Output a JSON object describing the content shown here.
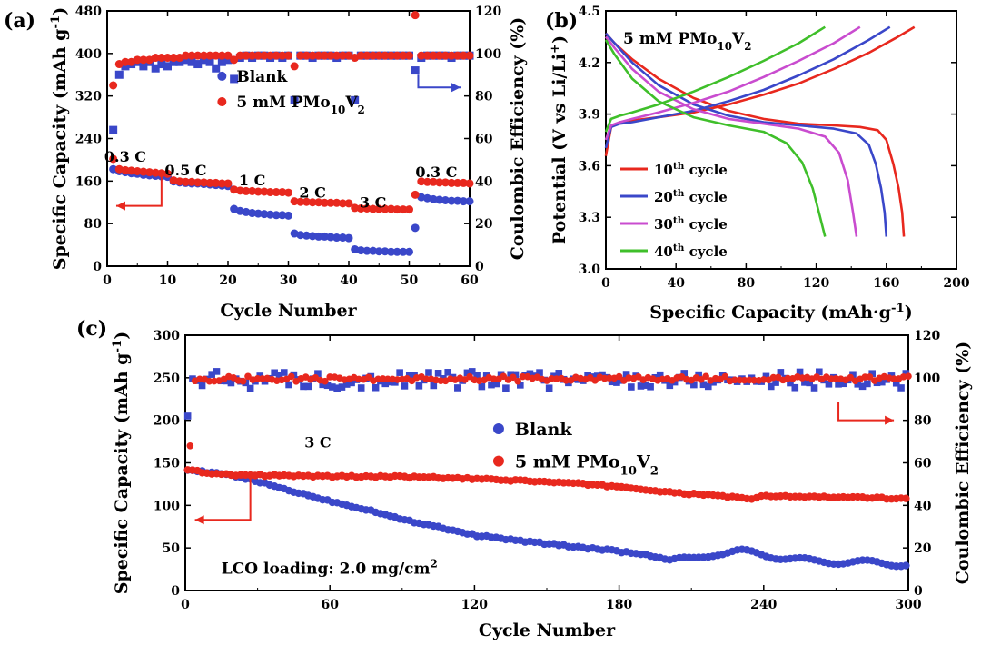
{
  "colors": {
    "blank": "#3a47c9",
    "pmo": "#e8281e",
    "c10": "#e8281e",
    "c20": "#3a47c9",
    "c30": "#c94ccf",
    "c40": "#3fbf2a"
  },
  "chart_data": [
    {
      "id": "a",
      "panel_label": "(a)",
      "type": "scatter",
      "xlabel": "Cycle Number",
      "ylabel": "Specific Capacity (mAh g-1)",
      "ylabel_main": "Specific Capacity (mAh g",
      "ylabel_sup": "-1",
      "ylabel_end": ")",
      "y2label": "Coulombic Efficiency (%)",
      "xlim": [
        0,
        60
      ],
      "ylim": [
        0,
        500
      ],
      "y2lim": [
        0,
        120
      ],
      "xticks": [
        "0",
        "10",
        "20",
        "30",
        "40",
        "50",
        "60"
      ],
      "yticks": [
        "0",
        "80",
        "160",
        "240",
        "320",
        "400",
        "480"
      ],
      "y2ticks": [
        "0",
        "20",
        "40",
        "60",
        "80",
        "100",
        "120"
      ],
      "legend": [
        {
          "series": "Blank",
          "label": "Blank"
        },
        {
          "series": "5 mM PMo10V2",
          "label_main": "5 mM PMo",
          "sub1": "10",
          "mid": "V",
          "sub2": "2"
        }
      ],
      "rate_labels": [
        {
          "text": "0.3 C",
          "x": 3,
          "y": 205
        },
        {
          "text": "0.5 C",
          "x": 13,
          "y": 178
        },
        {
          "text": "1 C",
          "x": 24,
          "y": 158
        },
        {
          "text": "2 C",
          "x": 34,
          "y": 134
        },
        {
          "text": "3 C",
          "x": 44,
          "y": 115
        },
        {
          "text": "0.3 C",
          "x": 54.5,
          "y": 174
        }
      ],
      "series": [
        {
          "name": "Blank",
          "axis": "left",
          "marker": "circle",
          "x": [
            1,
            2,
            3,
            4,
            5,
            6,
            7,
            8,
            9,
            10,
            11,
            12,
            13,
            14,
            15,
            16,
            17,
            18,
            19,
            20,
            21,
            22,
            23,
            24,
            25,
            26,
            27,
            28,
            29,
            30,
            31,
            32,
            33,
            34,
            35,
            36,
            37,
            38,
            39,
            40,
            41,
            42,
            43,
            44,
            45,
            46,
            47,
            48,
            49,
            50,
            51,
            52,
            53,
            54,
            55,
            56,
            57,
            58,
            59,
            60
          ],
          "y": [
            190,
            186,
            184,
            182,
            181,
            179,
            178,
            177,
            176,
            175,
            166,
            164,
            163,
            162,
            162,
            161,
            160,
            159,
            158,
            157,
            112,
            108,
            106,
            104,
            103,
            102,
            101,
            100,
            100,
            99,
            64,
            61,
            60,
            59,
            58,
            58,
            57,
            56,
            56,
            55,
            33,
            31,
            30,
            30,
            29,
            29,
            28,
            28,
            28,
            28,
            75,
            135,
            133,
            131,
            130,
            129,
            128,
            128,
            127,
            127
          ]
        },
        {
          "name": "5 mM PMo10V2",
          "axis": "left",
          "marker": "circle",
          "x": [
            1,
            2,
            3,
            4,
            5,
            6,
            7,
            8,
            9,
            10,
            11,
            12,
            13,
            14,
            15,
            16,
            17,
            18,
            19,
            20,
            21,
            22,
            23,
            24,
            25,
            26,
            27,
            28,
            29,
            30,
            31,
            32,
            33,
            34,
            35,
            36,
            37,
            38,
            39,
            40,
            41,
            42,
            43,
            44,
            45,
            46,
            47,
            48,
            49,
            50,
            51,
            52,
            53,
            54,
            55,
            56,
            57,
            58,
            59,
            60
          ],
          "y": [
            210,
            190,
            188,
            187,
            186,
            185,
            184,
            183,
            182,
            181,
            168,
            166,
            165,
            165,
            164,
            164,
            163,
            163,
            162,
            162,
            150,
            148,
            147,
            147,
            146,
            146,
            145,
            145,
            145,
            144,
            127,
            126,
            126,
            125,
            125,
            124,
            124,
            124,
            123,
            123,
            114,
            113,
            113,
            112,
            112,
            112,
            112,
            111,
            111,
            111,
            140,
            166,
            165,
            165,
            164,
            164,
            163,
            163,
            163,
            162
          ]
        },
        {
          "name": "Blank CE",
          "axis": "right",
          "marker": "square",
          "x": [
            1,
            2,
            3,
            4,
            5,
            6,
            7,
            8,
            9,
            10,
            11,
            12,
            13,
            14,
            15,
            16,
            17,
            18,
            19,
            20,
            21,
            22,
            23,
            24,
            25,
            26,
            27,
            28,
            29,
            30,
            31,
            32,
            33,
            34,
            35,
            36,
            37,
            38,
            39,
            40,
            41,
            42,
            43,
            44,
            45,
            46,
            47,
            48,
            49,
            50,
            51,
            52,
            53,
            54,
            55,
            56,
            57,
            58,
            59,
            60
          ],
          "y": [
            64,
            90,
            94,
            95,
            96,
            94,
            96,
            93,
            95,
            94,
            96,
            96,
            97,
            96,
            95,
            97,
            96,
            93,
            96,
            97,
            88,
            98,
            99,
            98,
            99,
            99,
            98,
            99,
            98,
            99,
            78,
            99,
            99,
            98,
            99,
            99,
            99,
            98,
            99,
            99,
            78,
            99,
            99,
            99,
            99,
            99,
            99,
            99,
            99,
            99,
            92,
            98,
            99,
            99,
            99,
            99,
            98,
            99,
            99,
            99
          ]
        },
        {
          "name": "5 mM PMo10V2 CE",
          "axis": "right",
          "marker": "circle",
          "x": [
            1,
            2,
            3,
            4,
            5,
            6,
            7,
            8,
            9,
            10,
            11,
            12,
            13,
            14,
            15,
            16,
            17,
            18,
            19,
            20,
            21,
            22,
            23,
            24,
            25,
            26,
            27,
            28,
            29,
            30,
            31,
            32,
            33,
            34,
            35,
            36,
            37,
            38,
            39,
            40,
            41,
            42,
            43,
            44,
            45,
            46,
            47,
            48,
            49,
            50,
            51,
            52,
            53,
            54,
            55,
            56,
            57,
            58,
            59,
            60
          ],
          "y": [
            85,
            95,
            96,
            96,
            97,
            97,
            97,
            98,
            98,
            98,
            98,
            98,
            99,
            99,
            99,
            99,
            99,
            99,
            99,
            99,
            97,
            99,
            99,
            99,
            99,
            99,
            99,
            99,
            99,
            99,
            94,
            99,
            99,
            99,
            99,
            99,
            99,
            99,
            99,
            99,
            98,
            99,
            99,
            99,
            99,
            99,
            99,
            99,
            99,
            99,
            118,
            99,
            99,
            99,
            99,
            99,
            99,
            99,
            99,
            99
          ]
        }
      ]
    },
    {
      "id": "b",
      "panel_label": "(b)",
      "type": "line",
      "title_main": "5 mM PMo",
      "title_sub1": "10",
      "title_mid": "V",
      "title_sub2": "2",
      "xlabel": "Specific Capacity (mAh·g-1)",
      "xlabel_main": "Specific Capacity (mAh·g",
      "xlabel_sup": "-1",
      "xlabel_end": ")",
      "ylabel": "Potential (V vs Li/Li+)",
      "ylabel_main": "Potential (V vs Li/Li",
      "ylabel_sup": "+",
      "ylabel_end": ")",
      "xlim": [
        0,
        200
      ],
      "ylim": [
        3.0,
        4.6
      ],
      "xticks": [
        "0",
        "40",
        "80",
        "120",
        "160",
        "200"
      ],
      "yticks": [
        "3.0",
        "3.3",
        "3.6",
        "3.9",
        "4.2",
        "4.5"
      ],
      "legend": [
        {
          "key": "c10",
          "num": "10",
          "sup": "th",
          "rest": " cycle"
        },
        {
          "key": "c20",
          "num": "20",
          "sup": "th",
          "rest": " cycle"
        },
        {
          "key": "c30",
          "num": "30",
          "sup": "th",
          "rest": " cycle"
        },
        {
          "key": "c40",
          "num": "40",
          "sup": "th",
          "rest": " cycle"
        }
      ],
      "series": [
        {
          "name": "10th cycle charge",
          "key": "c10",
          "x": [
            0,
            3,
            8,
            15,
            30,
            50,
            70,
            90,
            110,
            130,
            150,
            165,
            176
          ],
          "y": [
            3.7,
            3.88,
            3.91,
            3.92,
            3.94,
            3.97,
            4.02,
            4.08,
            4.15,
            4.24,
            4.34,
            4.43,
            4.5
          ]
        },
        {
          "name": "10th cycle discharge",
          "key": "c10",
          "x": [
            0,
            5,
            15,
            30,
            50,
            70,
            90,
            110,
            130,
            145,
            155,
            160,
            164,
            167,
            169,
            170
          ],
          "y": [
            4.46,
            4.4,
            4.3,
            4.18,
            4.06,
            3.98,
            3.93,
            3.9,
            3.89,
            3.88,
            3.86,
            3.8,
            3.65,
            3.5,
            3.35,
            3.2
          ]
        },
        {
          "name": "20th cycle charge",
          "key": "c20",
          "x": [
            0,
            3,
            8,
            15,
            30,
            50,
            70,
            90,
            110,
            130,
            150,
            162
          ],
          "y": [
            3.75,
            3.88,
            3.9,
            3.91,
            3.94,
            3.98,
            4.04,
            4.11,
            4.2,
            4.3,
            4.42,
            4.5
          ]
        },
        {
          "name": "20th cycle discharge",
          "key": "c20",
          "x": [
            0,
            5,
            15,
            30,
            50,
            70,
            90,
            110,
            130,
            143,
            150,
            154,
            157,
            159,
            160
          ],
          "y": [
            4.46,
            4.4,
            4.28,
            4.14,
            4.02,
            3.95,
            3.91,
            3.89,
            3.87,
            3.84,
            3.77,
            3.65,
            3.5,
            3.35,
            3.2
          ]
        },
        {
          "name": "30th cycle charge",
          "key": "c30",
          "x": [
            0,
            3,
            8,
            15,
            30,
            50,
            70,
            90,
            110,
            130,
            145
          ],
          "y": [
            3.8,
            3.89,
            3.91,
            3.93,
            3.97,
            4.03,
            4.1,
            4.19,
            4.29,
            4.4,
            4.5
          ]
        },
        {
          "name": "30th cycle discharge",
          "key": "c30",
          "x": [
            0,
            5,
            15,
            30,
            50,
            70,
            90,
            110,
            125,
            133,
            138,
            141,
            143
          ],
          "y": [
            4.44,
            4.37,
            4.24,
            4.1,
            3.99,
            3.93,
            3.9,
            3.87,
            3.82,
            3.72,
            3.55,
            3.35,
            3.2
          ]
        },
        {
          "name": "40th cycle charge",
          "key": "c40",
          "x": [
            0,
            3,
            8,
            15,
            30,
            50,
            70,
            90,
            110,
            125
          ],
          "y": [
            3.85,
            3.93,
            3.95,
            3.97,
            4.02,
            4.1,
            4.19,
            4.29,
            4.4,
            4.5
          ]
        },
        {
          "name": "40th cycle discharge",
          "key": "c40",
          "x": [
            0,
            5,
            15,
            30,
            50,
            70,
            90,
            103,
            112,
            118,
            122,
            125
          ],
          "y": [
            4.42,
            4.33,
            4.18,
            4.04,
            3.94,
            3.89,
            3.85,
            3.78,
            3.66,
            3.5,
            3.33,
            3.2
          ]
        }
      ]
    },
    {
      "id": "c",
      "panel_label": "(c)",
      "type": "scatter",
      "xlabel": "Cycle Number",
      "ylabel": "Specific Capacity (mAh g-1)",
      "ylabel_main": "Specific Capacity (mAh g",
      "ylabel_sup": "-1",
      "ylabel_end": ")",
      "y2label": "Coulombic Efficiency (%)",
      "xlim": [
        0,
        300
      ],
      "ylim": [
        0,
        300
      ],
      "y2lim": [
        0,
        120
      ],
      "xticks": [
        "0",
        "60",
        "120",
        "180",
        "240",
        "300"
      ],
      "yticks": [
        "0",
        "50",
        "100",
        "150",
        "200",
        "250",
        "300"
      ],
      "y2ticks": [
        "0",
        "20",
        "40",
        "60",
        "80",
        "100",
        "120"
      ],
      "annotation_rate": "3 C",
      "annotation_loading_main": "LCO loading: 2.0 mg/cm",
      "annotation_loading_sup": "2",
      "legend": [
        {
          "series": "Blank",
          "label": "Blank"
        },
        {
          "series": "5 mM PMo10V2",
          "label_main": "5 mM PMo",
          "sub1": "10",
          "mid": "V",
          "sub2": "2"
        }
      ],
      "capacity_trend": {
        "blank_x": [
          0,
          20,
          30,
          40,
          60,
          80,
          90,
          100,
          120,
          140,
          160,
          180,
          195,
          200,
          210,
          220,
          230,
          240,
          250,
          260,
          270,
          280,
          290,
          300
        ],
        "blank_y": [
          142,
          135,
          128,
          120,
          105,
          92,
          83,
          78,
          65,
          58,
          52,
          46,
          40,
          36,
          36,
          44,
          46,
          42,
          38,
          34,
          34,
          33,
          32,
          31
        ],
        "pmo_x": [
          0,
          10,
          20,
          40,
          60,
          80,
          100,
          120,
          140,
          160,
          180,
          195,
          205,
          220,
          235,
          240,
          260,
          280,
          300
        ],
        "pmo_y": [
          142,
          138,
          136,
          135,
          134,
          134,
          133,
          131,
          129,
          126,
          122,
          117,
          114,
          112,
          107,
          111,
          110,
          109,
          108
        ]
      },
      "series": [
        {
          "name": "Blank CE",
          "axis": "right",
          "marker": "square",
          "mean": 99,
          "spread": 4
        },
        {
          "name": "5 mM PMo10V2 CE",
          "axis": "right",
          "marker": "circle",
          "mean": 99.5,
          "spread": 1.2
        }
      ]
    }
  ]
}
